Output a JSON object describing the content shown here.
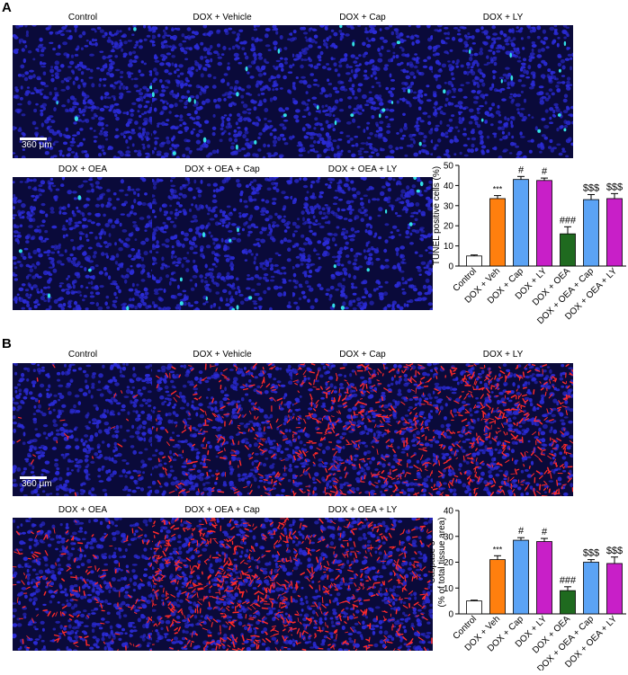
{
  "panels": [
    {
      "letter": "A",
      "stain": "tunel",
      "image_titles": [
        "Control",
        "DOX + Vehicle",
        "DOX + Cap",
        "DOX + LY",
        "DOX + OEA",
        "DOX + OEA + Cap",
        "DOX + OEA + LY"
      ],
      "scale_label": "360 μm",
      "colors": {
        "background": "#0a0a3a",
        "nuclei": "#2b2bd6",
        "positive": "#33e0e6"
      }
    },
    {
      "letter": "B",
      "stain": "caspase",
      "image_titles": [
        "Control",
        "DOX + Vehicle",
        "DOX + Cap",
        "DOX + LY",
        "DOX + OEA",
        "DOX + OEA + Cap",
        "DOX + OEA + LY"
      ],
      "scale_label": "360 μm",
      "colors": {
        "background": "#0a0a3a",
        "nuclei": "#2b2bd6",
        "positive": "#ff2a2a"
      }
    }
  ],
  "chart_data": [
    {
      "type": "bar",
      "categories": [
        "Control",
        "DOX + Veh",
        "DOX + Cap",
        "DOX + LY",
        "DOX + OEA",
        "DOX + OEA + Cap",
        "DOX + OEA + LY"
      ],
      "values": [
        5,
        33.5,
        43,
        42.5,
        16,
        33,
        33.5
      ],
      "errors": [
        0.5,
        1.5,
        1.5,
        1.2,
        3.5,
        2.5,
        2.5
      ],
      "significance": [
        "",
        "***",
        "#",
        "#",
        "###",
        "$$$",
        "$$$"
      ],
      "colors": [
        "#ffffff",
        "#ff7f0e",
        "#5ba3f5",
        "#c81fc8",
        "#1f6a1f",
        "#5ba3f5",
        "#c81fc8"
      ],
      "ylabel": "TUNEL positive cells (%)",
      "ylim": [
        0,
        50
      ],
      "yticks": [
        0,
        10,
        20,
        30,
        40,
        50
      ]
    },
    {
      "type": "bar",
      "categories": [
        "Control",
        "DOX + Veh",
        "DOX + Cap",
        "DOX + LY",
        "DOX + OEA",
        "DOX + OEA + Cap",
        "DOX + OEA + LY"
      ],
      "values": [
        5,
        21,
        28.5,
        28,
        9,
        20,
        19.5
      ],
      "errors": [
        0.3,
        1.5,
        1.0,
        1.2,
        1.5,
        1.0,
        2.5
      ],
      "significance": [
        "",
        "***",
        "#",
        "#",
        "###",
        "$$$",
        "$$$"
      ],
      "colors": [
        "#ffffff",
        "#ff7f0e",
        "#5ba3f5",
        "#c81fc8",
        "#1f6a1f",
        "#5ba3f5",
        "#c81fc8"
      ],
      "ylabel": "Caspase 3",
      "ylabel2": "(% of total tissue area)",
      "ylim": [
        0,
        40
      ],
      "yticks": [
        0,
        10,
        20,
        30,
        40
      ]
    }
  ]
}
